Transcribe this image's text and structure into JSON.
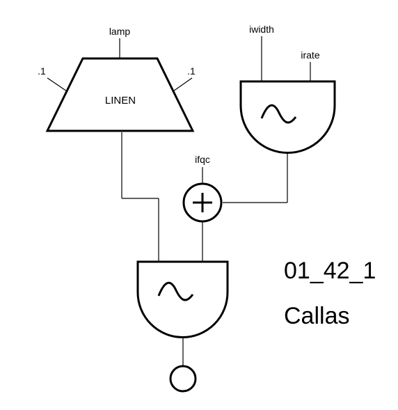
{
  "linen": {
    "label": "LINEN",
    "amp_label": "lamp",
    "rise_label": ".1",
    "decay_label": ".1"
  },
  "vibrato_osc": {
    "amp_label": "iwidth",
    "freq_label": "irate",
    "icon": "sine-wave-icon"
  },
  "adder": {
    "input_label": "ifqc",
    "icon": "plus-icon"
  },
  "main_osc": {
    "icon": "sine-wave-icon"
  },
  "output": {
    "icon": "output-circle-icon"
  },
  "caption": {
    "id": "01_42_1",
    "name": "Callas"
  }
}
